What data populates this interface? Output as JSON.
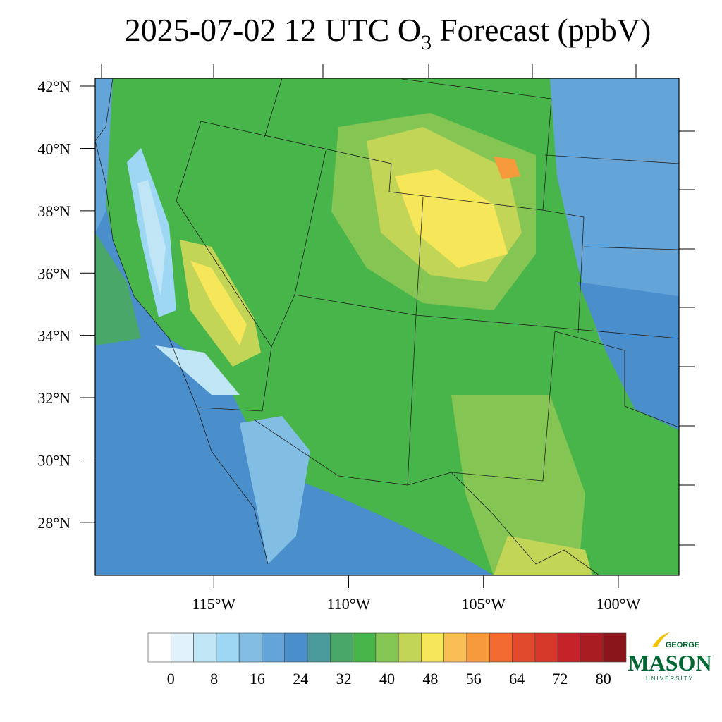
{
  "map": {
    "title_main": "2025-07-02 12 UTC O",
    "title_sub": "3",
    "title_rest": "Forecast (ppbV)",
    "ylim": [
      26.3,
      42.25
    ],
    "xlim": [
      -119.4,
      -97.75
    ],
    "lat_ticks": [
      {
        "value": 42,
        "label": "42°N"
      },
      {
        "value": 40,
        "label": "40°N"
      },
      {
        "value": 38,
        "label": "38°N"
      },
      {
        "value": 36,
        "label": "36°N"
      },
      {
        "value": 34,
        "label": "34°N"
      },
      {
        "value": 32,
        "label": "32°N"
      },
      {
        "value": 30,
        "label": "30°N"
      },
      {
        "value": 28,
        "label": "28°N"
      }
    ],
    "lon_ticks": [
      {
        "value": -115,
        "label": "115°W"
      },
      {
        "value": -110,
        "label": "110°W"
      },
      {
        "value": -105,
        "label": "105°W"
      },
      {
        "value": -100,
        "label": "100°W"
      }
    ],
    "colorbar": {
      "range": [
        -4.2,
        84.2
      ],
      "ticks": [
        0,
        8,
        16,
        24,
        32,
        40,
        48,
        56,
        64,
        72,
        80
      ],
      "colors": [
        "#ffffff",
        "#e1f2fb",
        "#c0e6f6",
        "#9dd7f3",
        "#82bde3",
        "#64a5d9",
        "#4a8ecb",
        "#4b9b9c",
        "#4aa76a",
        "#48b54a",
        "#84c553",
        "#c2d557",
        "#f6e75a",
        "#f9be53",
        "#f79a3c",
        "#f26a2f",
        "#e14a2c",
        "#d6382a",
        "#c62229",
        "#a91c22",
        "#8a161b"
      ]
    },
    "logo": {
      "top": "GEORGE",
      "main": "MASON",
      "bottom": "UNIVERSITY"
    }
  }
}
